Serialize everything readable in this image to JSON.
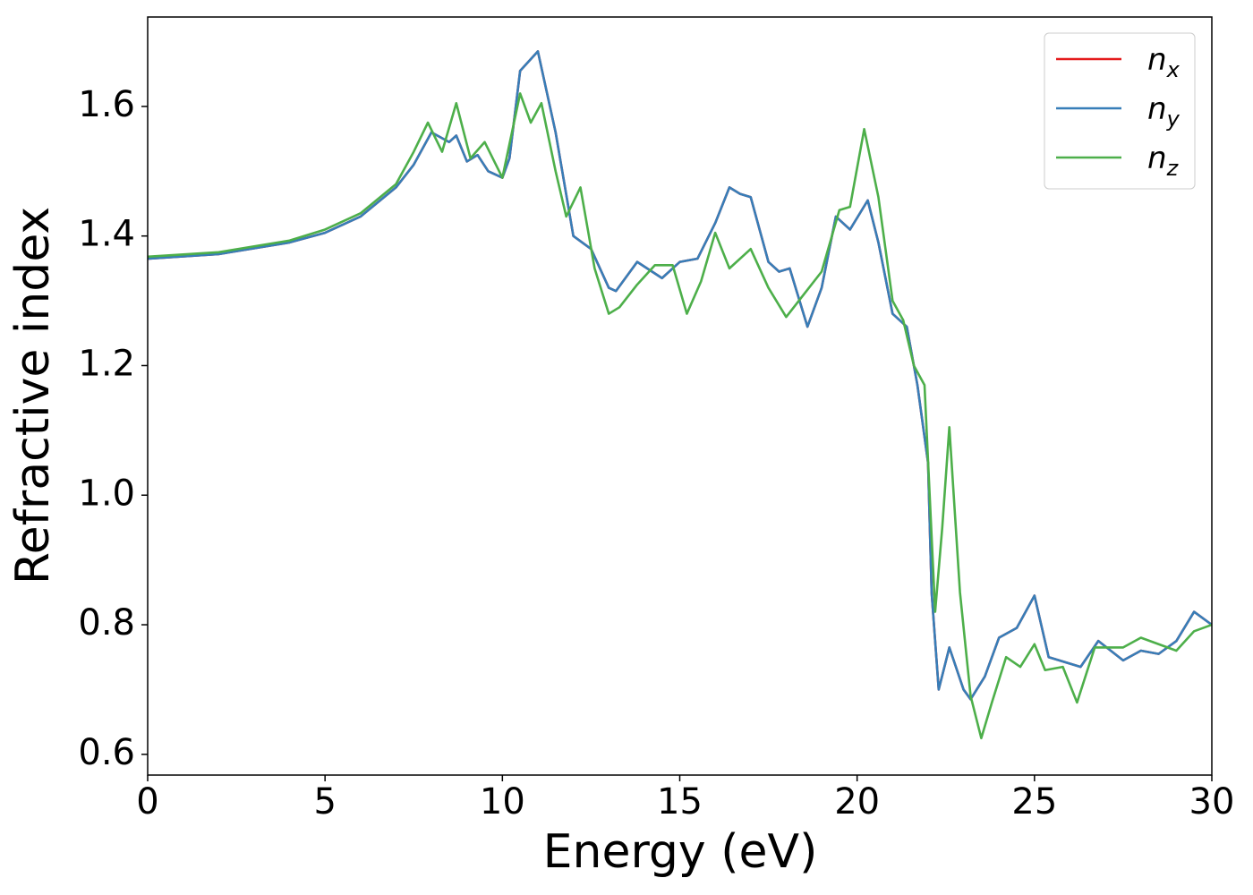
{
  "chart_data": {
    "type": "line",
    "x_label": "Energy (eV)",
    "y_label": "Refractive index",
    "xlim": [
      0,
      30
    ],
    "ylim": [
      0.568,
      1.738
    ],
    "xticks": [
      0,
      5,
      10,
      15,
      20,
      25,
      30
    ],
    "yticks": [
      {
        "value": 0.6,
        "label": "0.6"
      },
      {
        "value": 0.8,
        "label": "0.8"
      },
      {
        "value": 1.0,
        "label": "1.0"
      },
      {
        "value": 1.2,
        "label": "1.2"
      },
      {
        "value": 1.4,
        "label": "1.4"
      },
      {
        "value": 1.6,
        "label": "1.6"
      }
    ],
    "grid": false,
    "legend": "upper right",
    "series": [
      {
        "name": "n_x",
        "color": "#e41a1c",
        "x": [
          0,
          2,
          4,
          5,
          6,
          7,
          7.5,
          8,
          8.5,
          8.7,
          9,
          9.3,
          9.6,
          10,
          10.2,
          10.5,
          11,
          11.5,
          12,
          12.5,
          13,
          13.2,
          13.8,
          14.5,
          15,
          15.5,
          16,
          16.4,
          16.7,
          17,
          17.5,
          17.8,
          18.1,
          18.6,
          19,
          19.4,
          19.8,
          20.3,
          20.6,
          21,
          21.4,
          21.7,
          22,
          22.1,
          22.3,
          22.6,
          23,
          23.2,
          23.6,
          24,
          24.5,
          25,
          25.4,
          26,
          26.3,
          26.8,
          27.5,
          28,
          28.5,
          29,
          29.5,
          30
        ],
        "values": [
          1.365,
          1.372,
          1.39,
          1.405,
          1.43,
          1.475,
          1.51,
          1.56,
          1.545,
          1.555,
          1.515,
          1.525,
          1.5,
          1.49,
          1.52,
          1.655,
          1.685,
          1.56,
          1.4,
          1.38,
          1.32,
          1.315,
          1.36,
          1.335,
          1.36,
          1.365,
          1.42,
          1.475,
          1.465,
          1.46,
          1.36,
          1.345,
          1.35,
          1.26,
          1.32,
          1.43,
          1.41,
          1.455,
          1.39,
          1.28,
          1.26,
          1.17,
          1.05,
          0.85,
          0.7,
          0.765,
          0.7,
          0.685,
          0.72,
          0.78,
          0.795,
          0.845,
          0.75,
          0.74,
          0.735,
          0.775,
          0.745,
          0.76,
          0.755,
          0.775,
          0.82,
          0.8
        ]
      },
      {
        "name": "n_y",
        "color": "#377eb8",
        "x": [
          0,
          2,
          4,
          5,
          6,
          7,
          7.5,
          8,
          8.5,
          8.7,
          9,
          9.3,
          9.6,
          10,
          10.2,
          10.5,
          11,
          11.5,
          12,
          12.5,
          13,
          13.2,
          13.8,
          14.5,
          15,
          15.5,
          16,
          16.4,
          16.7,
          17,
          17.5,
          17.8,
          18.1,
          18.6,
          19,
          19.4,
          19.8,
          20.3,
          20.6,
          21,
          21.4,
          21.7,
          22,
          22.1,
          22.3,
          22.6,
          23,
          23.2,
          23.6,
          24,
          24.5,
          25,
          25.4,
          26,
          26.3,
          26.8,
          27.5,
          28,
          28.5,
          29,
          29.5,
          30
        ],
        "values": [
          1.365,
          1.372,
          1.39,
          1.405,
          1.43,
          1.475,
          1.51,
          1.56,
          1.545,
          1.555,
          1.515,
          1.525,
          1.5,
          1.49,
          1.52,
          1.655,
          1.685,
          1.56,
          1.4,
          1.38,
          1.32,
          1.315,
          1.36,
          1.335,
          1.36,
          1.365,
          1.42,
          1.475,
          1.465,
          1.46,
          1.36,
          1.345,
          1.35,
          1.26,
          1.32,
          1.43,
          1.41,
          1.455,
          1.39,
          1.28,
          1.26,
          1.17,
          1.05,
          0.85,
          0.7,
          0.765,
          0.7,
          0.685,
          0.72,
          0.78,
          0.795,
          0.845,
          0.75,
          0.74,
          0.735,
          0.775,
          0.745,
          0.76,
          0.755,
          0.775,
          0.82,
          0.8
        ]
      },
      {
        "name": "n_z",
        "color": "#4daf4a",
        "x": [
          0,
          2,
          4,
          5,
          6,
          7,
          7.5,
          7.9,
          8.3,
          8.7,
          9.1,
          9.5,
          10,
          10.5,
          10.8,
          11.1,
          11.5,
          11.8,
          12.2,
          12.6,
          13,
          13.3,
          13.8,
          14.3,
          14.8,
          15.2,
          15.6,
          16,
          16.4,
          17,
          17.5,
          18,
          18.5,
          19,
          19.5,
          19.8,
          20.2,
          20.6,
          21,
          21.3,
          21.6,
          21.9,
          22.2,
          22.4,
          22.6,
          22.9,
          23.2,
          23.5,
          23.8,
          24.2,
          24.6,
          25,
          25.3,
          25.8,
          26.2,
          26.7,
          27.5,
          28,
          28.5,
          29,
          29.5,
          30
        ],
        "values": [
          1.368,
          1.375,
          1.393,
          1.41,
          1.435,
          1.48,
          1.53,
          1.575,
          1.53,
          1.605,
          1.52,
          1.545,
          1.49,
          1.62,
          1.575,
          1.605,
          1.5,
          1.43,
          1.475,
          1.35,
          1.28,
          1.29,
          1.325,
          1.355,
          1.355,
          1.28,
          1.33,
          1.405,
          1.35,
          1.38,
          1.32,
          1.275,
          1.31,
          1.345,
          1.44,
          1.445,
          1.565,
          1.46,
          1.3,
          1.27,
          1.2,
          1.17,
          0.82,
          0.95,
          1.105,
          0.85,
          0.69,
          0.625,
          0.68,
          0.75,
          0.735,
          0.77,
          0.73,
          0.735,
          0.68,
          0.765,
          0.765,
          0.78,
          0.77,
          0.76,
          0.79,
          0.8
        ]
      }
    ]
  }
}
